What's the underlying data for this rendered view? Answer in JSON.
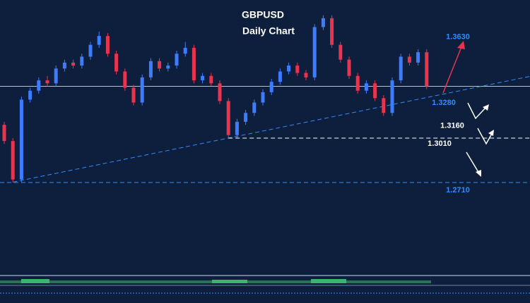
{
  "chart_data": {
    "type": "candlestick",
    "title": "GBPUSD",
    "subtitle": "Daily Chart",
    "ylim": [
      1.2086,
      1.3943
    ],
    "up_color": "#3d7bff",
    "down_color": "#e8344e",
    "open": [
      1.31,
      1.299,
      1.273,
      1.327,
      1.333,
      1.34,
      1.338,
      1.348,
      1.352,
      1.35,
      1.356,
      1.364,
      1.37,
      1.358,
      1.346,
      1.335,
      1.325,
      1.342,
      1.353,
      1.348,
      1.35,
      1.358,
      1.362,
      1.34,
      1.343,
      1.338,
      1.326,
      1.303,
      1.312,
      1.318,
      1.325,
      1.332,
      1.339,
      1.346,
      1.35,
      1.345,
      1.342,
      1.376,
      1.382,
      1.364,
      1.354,
      1.343,
      1.333,
      1.338,
      1.328,
      1.318,
      1.34,
      1.356,
      1.352,
      1.359
    ],
    "high": [
      1.312,
      1.301,
      1.329,
      1.335,
      1.342,
      1.343,
      1.35,
      1.354,
      1.354,
      1.358,
      1.366,
      1.373,
      1.372,
      1.36,
      1.348,
      1.337,
      1.344,
      1.355,
      1.355,
      1.352,
      1.36,
      1.366,
      1.364,
      1.345,
      1.345,
      1.34,
      1.328,
      1.314,
      1.32,
      1.327,
      1.334,
      1.341,
      1.348,
      1.352,
      1.352,
      1.347,
      1.378,
      1.384,
      1.384,
      1.366,
      1.356,
      1.345,
      1.34,
      1.34,
      1.33,
      1.342,
      1.358,
      1.358,
      1.361,
      1.361
    ],
    "low": [
      1.297,
      1.2712,
      1.271,
      1.325,
      1.331,
      1.336,
      1.336,
      1.346,
      1.348,
      1.348,
      1.354,
      1.362,
      1.356,
      1.344,
      1.333,
      1.323,
      1.323,
      1.34,
      1.346,
      1.346,
      1.348,
      1.356,
      1.338,
      1.338,
      1.336,
      1.324,
      1.301,
      1.301,
      1.31,
      1.316,
      1.323,
      1.33,
      1.337,
      1.344,
      1.343,
      1.34,
      1.34,
      1.374,
      1.362,
      1.352,
      1.341,
      1.331,
      1.331,
      1.326,
      1.316,
      1.316,
      1.338,
      1.35,
      1.35,
      1.334
    ],
    "close": [
      1.299,
      1.273,
      1.327,
      1.333,
      1.34,
      1.338,
      1.348,
      1.352,
      1.35,
      1.356,
      1.364,
      1.37,
      1.358,
      1.346,
      1.335,
      1.325,
      1.342,
      1.353,
      1.348,
      1.35,
      1.358,
      1.362,
      1.34,
      1.343,
      1.338,
      1.326,
      1.303,
      1.312,
      1.318,
      1.325,
      1.332,
      1.339,
      1.346,
      1.35,
      1.345,
      1.342,
      1.376,
      1.382,
      1.364,
      1.354,
      1.343,
      1.333,
      1.338,
      1.328,
      1.318,
      1.34,
      1.356,
      1.352,
      1.359,
      1.336
    ],
    "levels": [
      {
        "value": 1.363,
        "label": "1.3630",
        "color": "#2f8cff"
      },
      {
        "value": 1.328,
        "label": "1.3280",
        "color": "#2f8cff"
      },
      {
        "value": 1.316,
        "label": "1.3160",
        "color": "#ffffff"
      },
      {
        "value": 1.301,
        "label": "1.3010",
        "color": "#ffffff"
      },
      {
        "value": 1.271,
        "label": "1.2710",
        "color": "#2f8cff"
      }
    ]
  }
}
